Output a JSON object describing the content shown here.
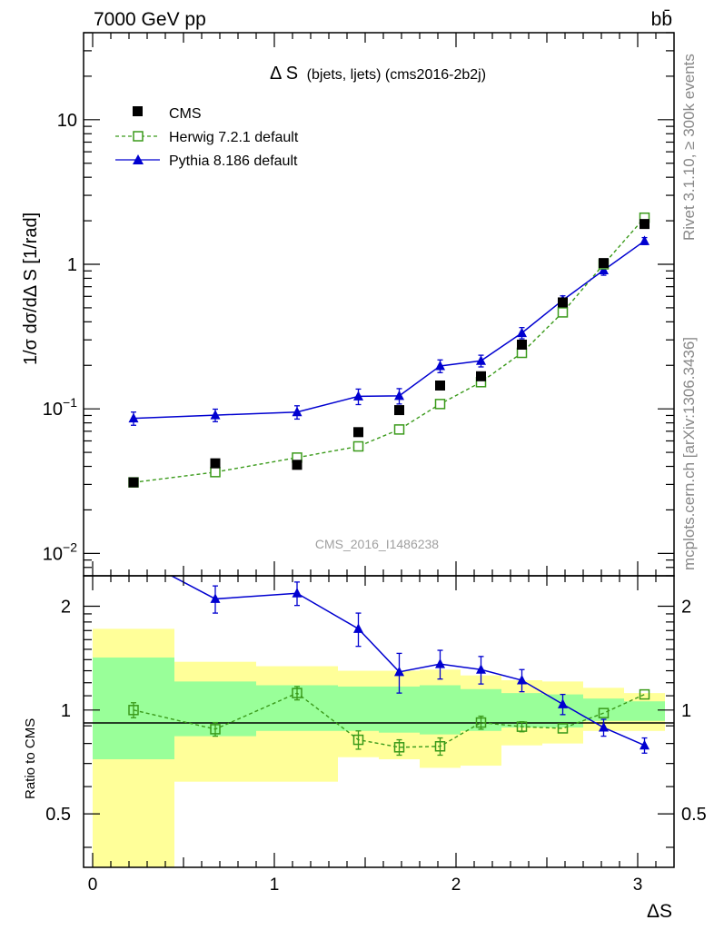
{
  "header": {
    "energy_label": "7000 GeV pp",
    "process_label": "bb̄"
  },
  "side": {
    "rivet_label": "Rivet 3.1.10, ≥ 300k events",
    "source_label": "mcplots.cern.ch [arXiv:1306.3436]"
  },
  "plot": {
    "title_main": "Δ S",
    "title_sub": "(bjets, ljets) (cms2016-2b2j)",
    "watermark": "CMS_2016_I1486238",
    "ylabel_main": "1/σ dσ/dΔ S [1/rad]",
    "ylabel_ratio": "Ratio to CMS",
    "xlabel": "ΔS",
    "legend": {
      "cms": "CMS",
      "herwig": "Herwig 7.2.1 default",
      "pythia": "Pythia 8.186 default"
    }
  },
  "chart_data": {
    "type": "scatter",
    "x_bin_edges": [
      0,
      0.45,
      0.9,
      1.35,
      1.575,
      1.8,
      2.025,
      2.25,
      2.475,
      2.7,
      2.925,
      3.15
    ],
    "x_centers": [
      0.225,
      0.675,
      1.125,
      1.4625,
      1.6875,
      1.9125,
      2.1375,
      2.3625,
      2.5875,
      2.8125,
      3.0375
    ],
    "main_panel": {
      "yscale": "log",
      "ylim": [
        0.007,
        40
      ],
      "xlim": [
        -0.05,
        3.2
      ],
      "series": [
        {
          "name": "CMS",
          "marker": "filled-square",
          "color": "#000000",
          "values": [
            0.031,
            0.042,
            0.041,
            0.069,
            0.098,
            0.145,
            0.168,
            0.278,
            0.545,
            1.02,
            1.9
          ]
        },
        {
          "name": "Herwig 7.2.1 default",
          "marker": "open-square",
          "line": "dashed",
          "color": "#3a9a1a",
          "values": [
            0.031,
            0.0365,
            0.046,
            0.055,
            0.072,
            0.108,
            0.153,
            0.244,
            0.465,
            1.0,
            2.1
          ]
        },
        {
          "name": "Pythia 8.186 default",
          "marker": "filled-triangle",
          "line": "solid",
          "color": "#0000d0",
          "values": [
            0.086,
            0.0905,
            0.095,
            0.122,
            0.123,
            0.198,
            0.215,
            0.335,
            0.565,
            0.91,
            1.45
          ],
          "errors": [
            0.009,
            0.009,
            0.01,
            0.015,
            0.015,
            0.02,
            0.02,
            0.03,
            0.04,
            0.07,
            0.08
          ]
        }
      ]
    },
    "ratio_panel": {
      "yscale": "log",
      "ylim": [
        0.35,
        2.45
      ],
      "ticks": [
        0.5,
        1,
        2
      ],
      "band_2sigma": {
        "lo": [
          0,
          0.62,
          0.62,
          0.73,
          0.72,
          0.68,
          0.69,
          0.79,
          0.8,
          0.87,
          0.87
        ],
        "hi": [
          1.72,
          1.38,
          1.34,
          1.3,
          1.3,
          1.31,
          1.26,
          1.22,
          1.21,
          1.16,
          1.12
        ]
      },
      "band_1sigma": {
        "lo": [
          0.72,
          0.84,
          0.87,
          0.87,
          0.86,
          0.85,
          0.87,
          0.89,
          0.89,
          0.93,
          0.93
        ],
        "hi": [
          1.42,
          1.21,
          1.18,
          1.17,
          1.17,
          1.18,
          1.15,
          1.12,
          1.11,
          1.08,
          1.06
        ]
      },
      "series": [
        {
          "name": "Herwig 7.2.1 default",
          "values": [
            1.0,
            0.88,
            1.12,
            0.82,
            0.78,
            0.785,
            0.92,
            0.895,
            0.885,
            0.98,
            1.11
          ],
          "errors": [
            0.05,
            0.04,
            0.05,
            0.05,
            0.04,
            0.045,
            0.04,
            0.03,
            0.0,
            0.0,
            0.0
          ]
        },
        {
          "name": "Pythia 8.186 default",
          "values": [
            2.8,
            2.1,
            2.18,
            1.72,
            1.29,
            1.36,
            1.31,
            1.22,
            1.04,
            0.89,
            0.79
          ],
          "errors": [
            0.3,
            0.19,
            0.17,
            0.19,
            0.17,
            0.13,
            0.12,
            0.09,
            0.07,
            0.05,
            0.04
          ]
        }
      ]
    }
  }
}
